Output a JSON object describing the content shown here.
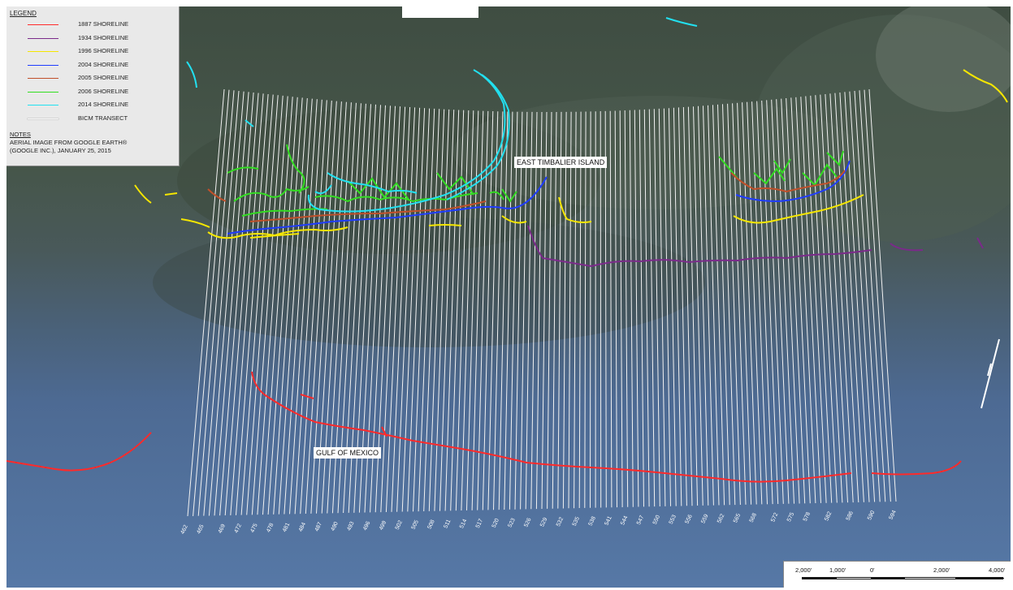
{
  "legend": {
    "title": "LEGEND",
    "items": [
      {
        "label": "1887 SHORELINE",
        "color": "#ff2a2a"
      },
      {
        "label": "1934 SHORELINE",
        "color": "#7b2a8a"
      },
      {
        "label": "1996 SHORELINE",
        "color": "#f5e600"
      },
      {
        "label": "2004 SHORELINE",
        "color": "#1f3cff"
      },
      {
        "label": "2005 SHORELINE",
        "color": "#c0502a"
      },
      {
        "label": "2006 SHORELINE",
        "color": "#33dd22"
      },
      {
        "label": "2014 SHORELINE",
        "color": "#22e0f0"
      },
      {
        "label": "BICM TRANSECT",
        "color": "#ffffff"
      }
    ],
    "notes_title": "NOTES",
    "notes_lines": [
      "AERIAL IMAGE FROM GOOGLE EARTH®",
      "(GOOGLE  INC.), JANUARY 25, 2015"
    ]
  },
  "labels": {
    "island": "EAST TIMBALIER ISLAND",
    "gulf": "GULF OF MEXICO"
  },
  "transects": {
    "first": 462,
    "last": 594,
    "tick_labels": [
      "462",
      "465",
      "469",
      "472",
      "475",
      "478",
      "481",
      "484",
      "487",
      "490",
      "493",
      "496",
      "499",
      "502",
      "505",
      "508",
      "511",
      "514",
      "517",
      "520",
      "523",
      "526",
      "529",
      "532",
      "535",
      "538",
      "541",
      "544",
      "547",
      "550",
      "553",
      "556",
      "559",
      "562",
      "565",
      "568",
      "572",
      "575",
      "578",
      "582",
      "586",
      "590",
      "594"
    ]
  },
  "scale_bar": {
    "labels": [
      "2,000'",
      "1,000'",
      "0'",
      "2,000'",
      "4,000'"
    ]
  }
}
